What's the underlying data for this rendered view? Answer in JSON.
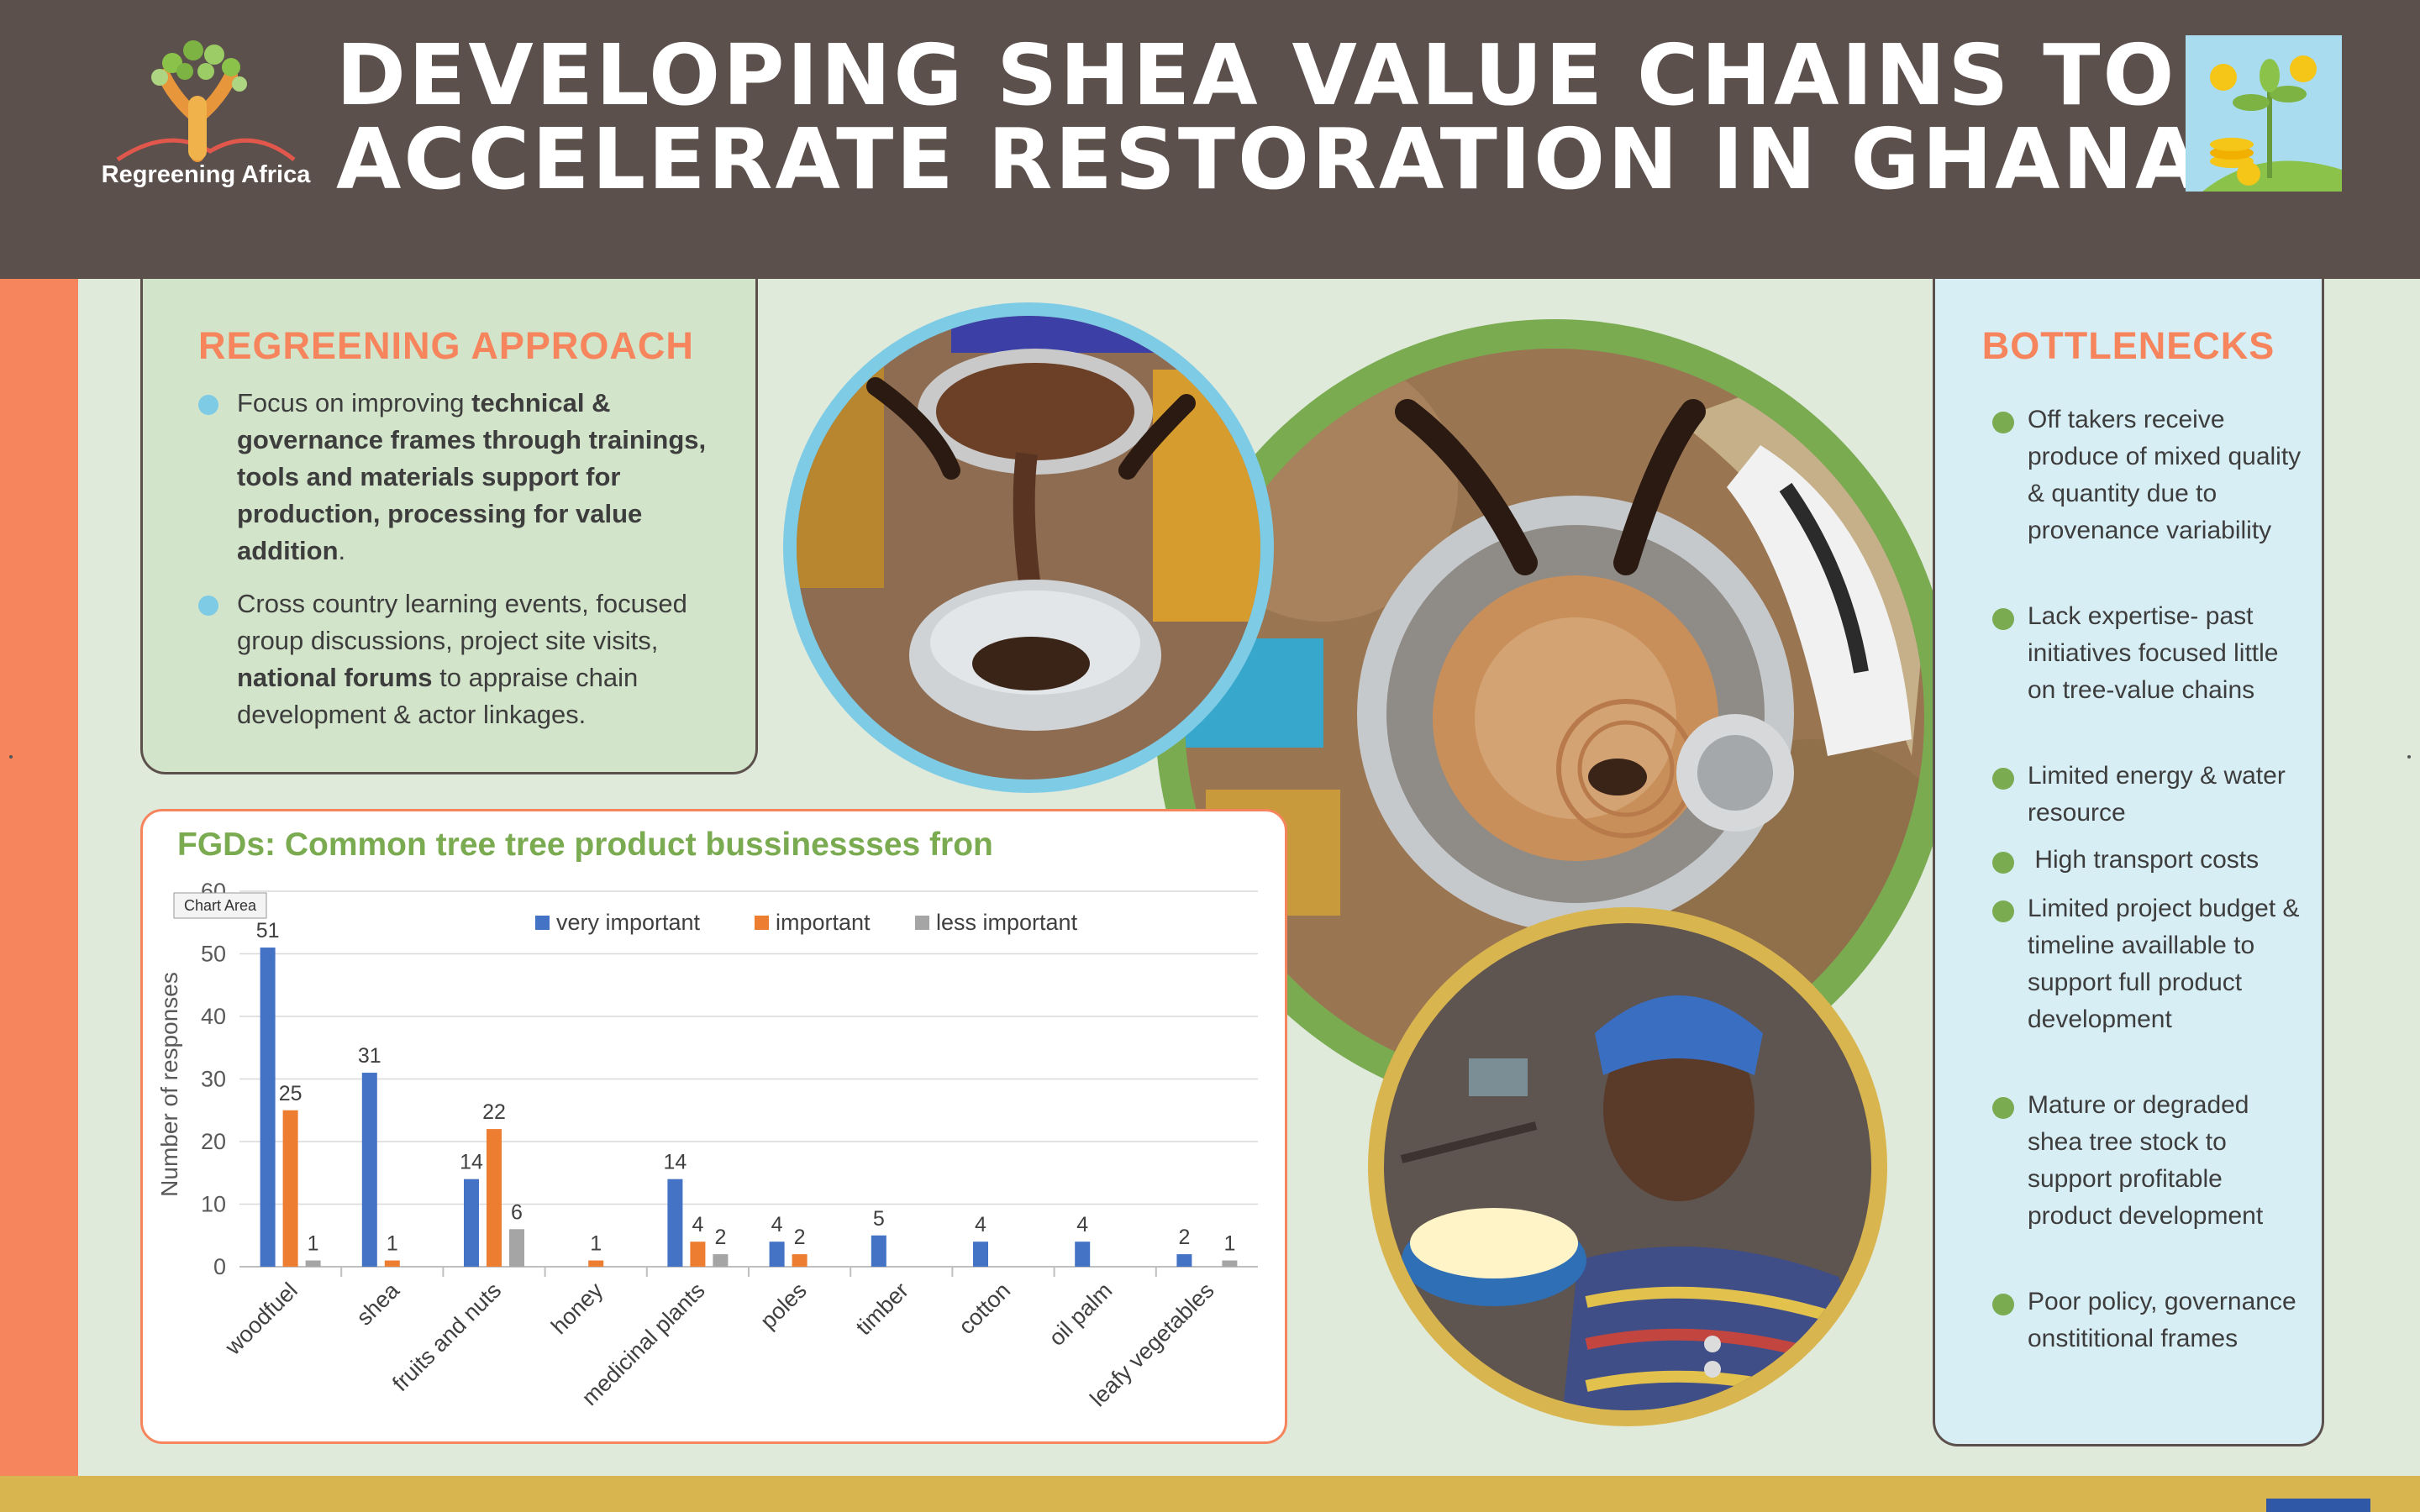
{
  "header": {
    "logo_text": "Regreening Africa",
    "title_line1": "DEVELOPING SHEA VALUE CHAINS TO",
    "title_line2": "ACCELERATE RESTORATION IN GHANA",
    "colors": {
      "background": "#5c504d",
      "title": "#ffffff"
    }
  },
  "approach": {
    "heading": "REGREENING APPROACH",
    "bullet1": {
      "pre": "Focus on improving ",
      "bold": "technical & governance frames through trainings, tools and materials support for production, processing for value addition",
      "post": "."
    },
    "bullet2": {
      "pre": "Cross country learning events, focused group discussions, project site visits, ",
      "bold": "national forums",
      "post": " to appraise chain development & actor linkages."
    },
    "bullet_color": "#7ecbe6"
  },
  "bottlenecks": {
    "heading": "BOTTLENECKS",
    "items": [
      "Off takers receive produce of mixed quality & quantity due to provenance variability",
      "Lack expertise- past initiatives focused little on tree-value chains",
      "Limited energy & water resource",
      " High transport costs",
      "Limited project budget & timeline availlable to support full product development",
      "Mature or degraded shea tree stock to support profitable product development",
      "Poor policy, governance onstititional frames"
    ],
    "bullet_color": "#7aab51"
  },
  "photos": [
    {
      "subject": "Women pouring melted shea butter into a bowl",
      "ring_color": "#7ecbe6"
    },
    {
      "subject": "Hands kneading shea paste in a large metal bowl",
      "ring_color": "#7aab51"
    },
    {
      "subject": "Woman holding a blue bowl of shea butter",
      "ring_color": "#d9b54f"
    }
  ],
  "chart": {
    "title": "FGDs: Common tree tree product bussinessses fron",
    "tooltip": "Chart Area"
  },
  "chart_data": {
    "type": "bar",
    "title": "FGDs: Common tree tree product bussinessses fron",
    "xlabel": "",
    "ylabel": "Number of responses",
    "ylim": [
      0,
      60
    ],
    "yticks": [
      0,
      10,
      20,
      30,
      40,
      50,
      60
    ],
    "grid": true,
    "legend_position": "top",
    "categories": [
      "woodfuel",
      "shea",
      "fruits and nuts",
      "honey",
      "medicinal plants",
      "poles",
      "timber",
      "cotton",
      "oil palm",
      "leafy vegetables"
    ],
    "series": [
      {
        "name": "very important",
        "color": "#4472c4",
        "values": [
          51,
          31,
          14,
          null,
          14,
          4,
          5,
          4,
          4,
          2
        ]
      },
      {
        "name": "important",
        "color": "#ed7d31",
        "values": [
          25,
          1,
          22,
          1,
          4,
          2,
          null,
          null,
          null,
          null
        ]
      },
      {
        "name": "less important",
        "color": "#a5a5a5",
        "values": [
          1,
          null,
          6,
          null,
          2,
          null,
          null,
          null,
          null,
          1
        ]
      }
    ]
  }
}
